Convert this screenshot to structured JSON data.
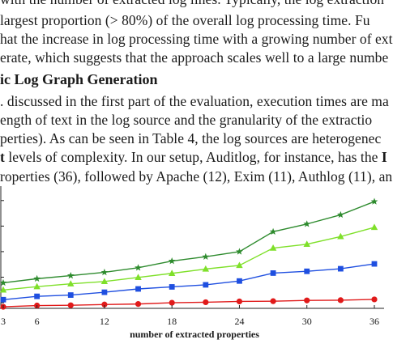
{
  "text": {
    "line0": "with the number of extracted log lines. Typically, the log extraction",
    "line1": "largest proportion (> 80%) of the overall log processing time. Fu",
    "line2": "hat the increase in log processing time with a growing number of ext",
    "line3": "erate, which suggests that the approach scales well to a large numbe",
    "heading": "ic Log Graph Generation",
    "line4": ". discussed in the first part of the evaluation, execution times are ma",
    "line5": "ength of text in the log source and the granularity of the extractio",
    "line6": "perties). As can be seen in Table 4, the log sources are heterogenec",
    "line7a": "t",
    "line7b": " levels of complexity. In our setup, Auditlog, for instance, has the ",
    "line7c": "I",
    "line8": "roperties (36), followed by Apache (12), Exim (11), Authlog (11), an"
  },
  "chart_data": {
    "type": "line",
    "xlabel": "number of extracted properties",
    "ylabel": "",
    "xlim": [
      3,
      36
    ],
    "x_ticks": [
      3,
      6,
      12,
      18,
      24,
      30,
      36
    ],
    "grid": false,
    "legend": "none",
    "series": [
      {
        "color": "#2e8b2e",
        "marker": "star",
        "x": [
          3,
          6,
          9,
          12,
          15,
          18,
          21,
          24,
          27,
          30,
          33,
          36
        ],
        "values": [
          7.8,
          9.4,
          10.6,
          11.9,
          13.7,
          16.3,
          18.0,
          20.0,
          27.8,
          30.8,
          34.4,
          39.6
        ]
      },
      {
        "color": "#7fe02a",
        "marker": "triangle",
        "x": [
          3,
          6,
          9,
          12,
          15,
          18,
          21,
          24,
          27,
          30,
          33,
          36
        ],
        "values": [
          5.0,
          6.3,
          7.4,
          8.3,
          9.9,
          11.5,
          13.2,
          14.6,
          21.4,
          22.9,
          25.9,
          29.5
        ]
      },
      {
        "color": "#1f4fe0",
        "marker": "square",
        "x": [
          3,
          6,
          9,
          12,
          15,
          18,
          21,
          24,
          27,
          30,
          33,
          36
        ],
        "values": [
          1.2,
          2.5,
          3.0,
          4.1,
          5.4,
          6.2,
          7.0,
          8.5,
          11.6,
          12.3,
          13.3,
          15.2
        ]
      },
      {
        "color": "#e01a1a",
        "marker": "circle",
        "x": [
          3,
          6,
          9,
          12,
          15,
          18,
          21,
          24,
          27,
          30,
          33,
          36
        ],
        "values": [
          -1.6,
          -1.1,
          -1.0,
          -0.7,
          -0.5,
          0.0,
          0.2,
          0.5,
          0.6,
          0.9,
          1.0,
          1.3
        ]
      }
    ]
  }
}
